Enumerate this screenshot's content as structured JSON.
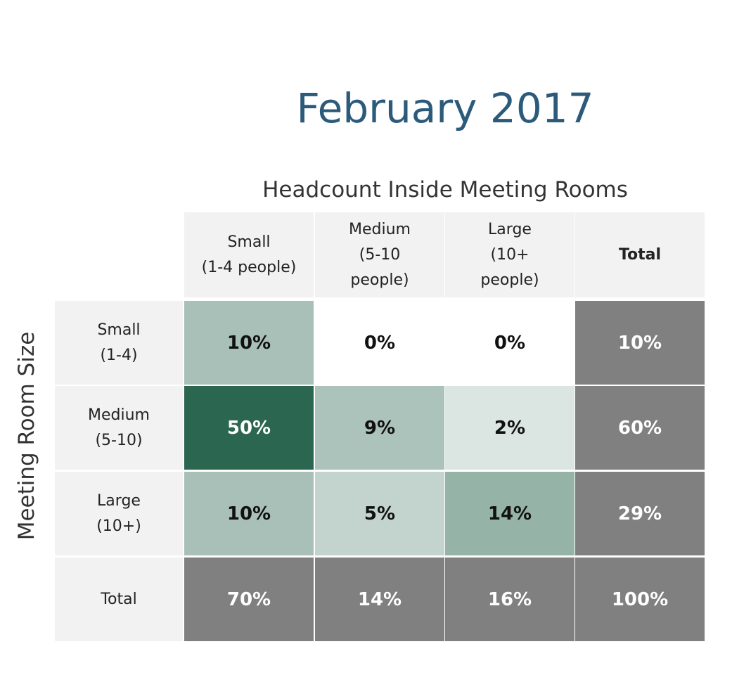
{
  "chart_data": {
    "type": "heatmap",
    "title": "February 2017",
    "xlabel": "Headcount Inside Meeting Rooms",
    "ylabel": "Meeting Room Size",
    "column_headers": [
      "Small\n(1-4 people)",
      "Medium\n(5-10\npeople)",
      "Large\n(10+\npeople)",
      "Total"
    ],
    "row_headers": [
      "Small\n(1-4)",
      "Medium\n(5-10)",
      "Large\n(10+)",
      "Total"
    ],
    "values": [
      [
        10,
        0,
        0,
        10
      ],
      [
        50,
        9,
        2,
        60
      ],
      [
        10,
        5,
        14,
        29
      ],
      [
        70,
        14,
        16,
        100
      ]
    ],
    "value_labels": [
      [
        "10%",
        "0%",
        "0%",
        "10%"
      ],
      [
        "50%",
        "9%",
        "2%",
        "60%"
      ],
      [
        "10%",
        "5%",
        "14%",
        "29%"
      ],
      [
        "70%",
        "14%",
        "16%",
        "100%"
      ]
    ],
    "unit": "%"
  },
  "colors": {
    "title": "#2c5a7a",
    "header_bg": "#f2f2f2",
    "total_bg": "#808080",
    "total_text": "#ffffff",
    "cell_text": "#111111",
    "heat_low": "#ffffff",
    "heat_high": "#2b6650"
  }
}
